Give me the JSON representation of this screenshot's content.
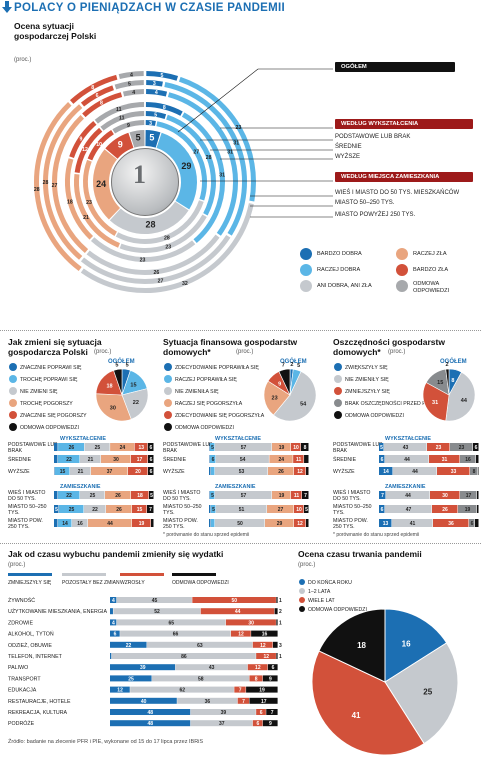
{
  "title": "POLACY O PIENIĄDZACH W CZASIE PANDEMII",
  "colors": {
    "bardzo_dobra": "#1c6fb3",
    "raczej_dobra": "#5bb6e6",
    "ani": "#c5c9ce",
    "raczej_zla": "#e9a57f",
    "bardzo_zla": "#d2513a",
    "odmowa": "#a7a9ac",
    "brak": "#111111",
    "accent": "#c8102e"
  },
  "s1": {
    "title": "Ocena sytuacji gospodarczej Polski",
    "unit": "(proc.)",
    "callouts": {
      "ogolem": "OGÓŁEM",
      "wyksztalcenie": "WEDŁUG WYKSZTAŁCENIA",
      "miejsce": "WEDŁUG MIEJSCA ZAMIESZKANIA"
    },
    "ring_labels": [
      "PODSTAWOWE LUB BRAK",
      "ŚREDNIE",
      "WYŻSZE",
      "WIEŚ I MIASTO DO 50 TYS. MIESZKAŃCÓW",
      "MIASTO 50–250 TYS.",
      "MIASTO POWYŻEJ 250 TYS."
    ],
    "coin_value": "1",
    "legend": [
      "BARDZO DOBRA",
      "RACZEJ DOBRA",
      "ANI DOBRA, ANI ZŁA",
      "RACZEJ ZŁA",
      "BARDZO ZŁA",
      "ODMOWA ODPOWIEDZI"
    ]
  },
  "s2": {
    "title": "Jak zmieni się sytuacja gospodarcza Polski",
    "unit": "(proc.)",
    "legend": [
      "ZNACZNIE POPRAWI SIĘ",
      "TROCHĘ POPRAWI SIĘ",
      "NIE ZMIENI SIĘ",
      "TROCHĘ POGORSZY",
      "ZNACZNIE SIĘ POGORSZY",
      "ODMOWA ODPOWIEDZI"
    ],
    "ogolem": "OGÓŁEM",
    "wyk": "WYKSZTAŁCENIE",
    "zam": "ZAMIESZKANIE"
  },
  "s3": {
    "title": "Sytuacja finansowa gospodarstw domowych*",
    "unit": "(proc.)",
    "legend": [
      "ZDECYDOWANIE POPRAWIŁA SIĘ",
      "RACZEJ POPRAWIŁA SIĘ",
      "NIE ZMIENIŁA SIĘ",
      "RACZEJ SIĘ POGORSZYŁA",
      "ZDECYDOWANIE SIĘ POGORSZYŁA",
      "ODMOWA ODPOWIEDZI"
    ],
    "ogolem": "OGÓŁEM",
    "wyk": "WYKSZTAŁCENIE",
    "zam": "ZAMIESZKANIE",
    "footnote": "* porównanie do stanu sprzed epidemii"
  },
  "s4": {
    "title": "Oszczędności gospodarstw domowych*",
    "unit": "(proc.)",
    "legend": [
      "ZWIĘKSZYŁY SIĘ",
      "NIE ZMIENIŁY SIĘ",
      "ZMNIEJSZYŁY SIĘ",
      "BRAK OSZCZĘDNOŚCI PRZED PANDEMIĄ",
      "ODMOWA ODPOWIEDZI"
    ],
    "ogolem": "OGÓŁEM",
    "wyk": "WYKSZTAŁCENIE",
    "zam": "ZAMIESZKANIE",
    "footnote": "* porównanie do stanu sprzed epidemii"
  },
  "s5": {
    "title": "Jak od czasu wybuchu pandemii zmieniły się wydatki",
    "unit": "(proc.)",
    "legend": [
      "ZMNIEJSZYŁY SIĘ",
      "POZOSTAŁY BEZ ZMIAN",
      "WZROSŁY",
      "ODMOWA ODPOWIEDZI"
    ]
  },
  "s6": {
    "title": "Ocena czasu trwania pandemii",
    "unit": "(proc.)",
    "legend": [
      "DO KOŃCA ROKU",
      "1–2 LATA",
      "WIELE LAT",
      "ODMOWA ODPOWIEDZI"
    ]
  },
  "source": "Źródło: badanie na zlecenie PFR i PIE, wykonane od 15 do 17 lipca przez IBRiS",
  "chart_data": [
    {
      "type": "donut-rings",
      "title": "Ocena sytuacji gospodarczej Polski",
      "series_names": [
        "BARDZO DOBRA",
        "RACZEJ DOBRA",
        "ANI DOBRA, ANI ZŁA",
        "RACZEJ ZŁA",
        "BARDZO ZŁA",
        "ODMOWA ODPOWIEDZI"
      ],
      "rings": [
        {
          "name": "OGÓŁEM",
          "values": [
            5,
            29,
            28,
            24,
            9,
            5
          ]
        },
        {
          "name": "PODSTAWOWE LUB BRAK",
          "values": [
            3,
            27,
            28,
            23,
            10,
            9
          ]
        },
        {
          "name": "ŚREDNIE",
          "values": [
            5,
            28,
            23,
            21,
            12,
            11
          ]
        },
        {
          "name": "WYŻSZE",
          "values": [
            8,
            31,
            23,
            18,
            9,
            11
          ]
        },
        {
          "name": "WIEŚ I MIASTO DO 50 TYS. MIESZKAŃCÓW",
          "values": [
            4,
            31,
            26,
            27,
            8,
            4
          ]
        },
        {
          "name": "MIASTO 50–250 TYS.",
          "values": [
            3,
            31,
            27,
            28,
            6,
            5
          ]
        },
        {
          "name": "MIASTO POWYŻEJ 250 TYS.",
          "values": [
            5,
            23,
            32,
            28,
            8,
            4
          ]
        }
      ]
    },
    {
      "type": "pie",
      "title": "Jak zmieni się sytuacja gospodarcza Polski — OGÓŁEM",
      "categories": [
        "ZNACZNIE POPRAWI SIĘ",
        "TROCHĘ POPRAWI SIĘ",
        "NIE ZMIENI SIĘ",
        "TROCHĘ POGORSZY",
        "ZNACZNIE SIĘ POGORSZY",
        "ODMOWA ODPOWIEDZI"
      ],
      "values": [
        5,
        15,
        22,
        30,
        18,
        5
      ]
    },
    {
      "type": "stacked-bar",
      "title": "Jak zmieni się sytuacja gospodarcza Polski — grupy",
      "rows": [
        {
          "label": "PODSTAWOWE LUB BRAK",
          "values": [
            4,
            26,
            25,
            24,
            13,
            6
          ]
        },
        {
          "label": "ŚREDNIE",
          "values": [
            4,
            22,
            21,
            30,
            17,
            6
          ]
        },
        {
          "label": "WYŻSZE",
          "values": [
            1,
            15,
            21,
            37,
            20,
            6
          ]
        },
        {
          "label": "WIEŚ I MIASTO DO 50 TYS.",
          "values": [
            4,
            22,
            25,
            26,
            18,
            5
          ]
        },
        {
          "label": "MIASTO 50–250 TYS.",
          "values": [
            5,
            25,
            22,
            26,
            15,
            7
          ]
        },
        {
          "label": "MIASTO POW. 250 TYS.",
          "values": [
            4,
            14,
            16,
            44,
            19,
            3
          ]
        }
      ]
    },
    {
      "type": "pie",
      "title": "Sytuacja finansowa gospodarstw domowych — OGÓŁEM",
      "categories": [
        "ZDECYDOWANIE POPRAWIŁA SIĘ",
        "RACZEJ POPRAWIŁA SIĘ",
        "NIE ZMIENIŁA SIĘ",
        "RACZEJ SIĘ POGORSZYŁA",
        "ZDECYDOWANIE SIĘ POGORSZYŁA",
        "ODMOWA ODPOWIEDZI"
      ],
      "values": [
        2,
        5,
        54,
        23,
        9,
        7
      ]
    },
    {
      "type": "stacked-bar",
      "title": "Sytuacja finansowa gospodarstw domowych — grupy",
      "rows": [
        {
          "label": "PODSTAWOWE LUB BRAK",
          "values": [
            1,
            5,
            57,
            19,
            10,
            8
          ]
        },
        {
          "label": "ŚREDNIE",
          "values": [
            1,
            6,
            54,
            24,
            11,
            5
          ]
        },
        {
          "label": "WYŻSZE",
          "values": [
            2,
            4,
            53,
            26,
            12,
            3
          ]
        },
        {
          "label": "WIEŚ I MIASTO DO 50 TYS.",
          "values": [
            1,
            5,
            57,
            19,
            11,
            7
          ]
        },
        {
          "label": "MIASTO 50–250 TYS.",
          "values": [
            2,
            5,
            51,
            27,
            10,
            5
          ]
        },
        {
          "label": "MIASTO POW. 250 TYS.",
          "values": [
            2,
            4,
            50,
            29,
            12,
            3
          ]
        }
      ]
    },
    {
      "type": "pie",
      "title": "Oszczędności gospodarstw domowych — OGÓŁEM",
      "categories": [
        "ZWIĘKSZYŁY SIĘ",
        "NIE ZMIENIŁY SIĘ",
        "ZMNIEJSZYŁY SIĘ",
        "BRAK OSZCZĘDNOŚCI PRZED PANDEMIĄ",
        "ODMOWA ODPOWIEDZI"
      ],
      "values": [
        8,
        44,
        31,
        15,
        2
      ]
    },
    {
      "type": "stacked-bar",
      "title": "Oszczędności gospodarstw domowych — grupy",
      "rows": [
        {
          "label": "PODSTAWOWE LUB BRAK",
          "values": [
            5,
            43,
            23,
            23,
            6
          ]
        },
        {
          "label": "ŚREDNIE",
          "values": [
            6,
            44,
            31,
            16,
            3
          ]
        },
        {
          "label": "WYŻSZE",
          "values": [
            14,
            44,
            33,
            8,
            1
          ]
        },
        {
          "label": "WIEŚ I MIASTO DO 50 TYS.",
          "values": [
            7,
            44,
            30,
            17,
            2
          ]
        },
        {
          "label": "MIASTO 50–250 TYS.",
          "values": [
            6,
            47,
            26,
            19,
            2
          ]
        },
        {
          "label": "MIASTO POW. 250 TYS.",
          "values": [
            13,
            41,
            36,
            6,
            4
          ]
        }
      ]
    },
    {
      "type": "stacked-bar",
      "title": "Jak od czasu wybuchu pandemii zmieniły się wydatki",
      "series_names": [
        "ZMNIEJSZYŁY SIĘ",
        "POZOSTAŁY BEZ ZMIAN",
        "WZROSŁY",
        "ODMOWA ODPOWIEDZI"
      ],
      "rows": [
        {
          "label": "ŻYWNOŚĆ",
          "values": [
            4,
            45,
            50,
            1
          ]
        },
        {
          "label": "UŻYTKOWANIE MIESZKANIA, ENERGIA",
          "values": [
            2,
            52,
            44,
            2
          ]
        },
        {
          "label": "ZDROWIE",
          "values": [
            4,
            65,
            30,
            1
          ]
        },
        {
          "label": "ALKOHOL, TYTOŃ",
          "values": [
            6,
            66,
            12,
            16
          ]
        },
        {
          "label": "ODZIEŻ, OBUWIE",
          "values": [
            22,
            63,
            12,
            3
          ]
        },
        {
          "label": "TELEFON, INTERNET",
          "values": [
            1,
            86,
            12,
            1
          ]
        },
        {
          "label": "PALIWO",
          "values": [
            39,
            43,
            12,
            6
          ]
        },
        {
          "label": "TRANSPORT",
          "values": [
            25,
            58,
            8,
            9
          ]
        },
        {
          "label": "EDUKACJA",
          "values": [
            12,
            62,
            7,
            19
          ]
        },
        {
          "label": "RESTAURACJE, HOTELE",
          "values": [
            40,
            36,
            7,
            17
          ]
        },
        {
          "label": "REKREACJA, KULTURA",
          "values": [
            48,
            39,
            6,
            7
          ]
        },
        {
          "label": "PODRÓŻE",
          "values": [
            48,
            37,
            6,
            9
          ]
        }
      ]
    },
    {
      "type": "pie",
      "title": "Ocena czasu trwania pandemii",
      "categories": [
        "DO KOŃCA ROKU",
        "1–2 LATA",
        "WIELE LAT",
        "ODMOWA ODPOWIEDZI"
      ],
      "values": [
        16,
        25,
        41,
        18
      ]
    }
  ]
}
